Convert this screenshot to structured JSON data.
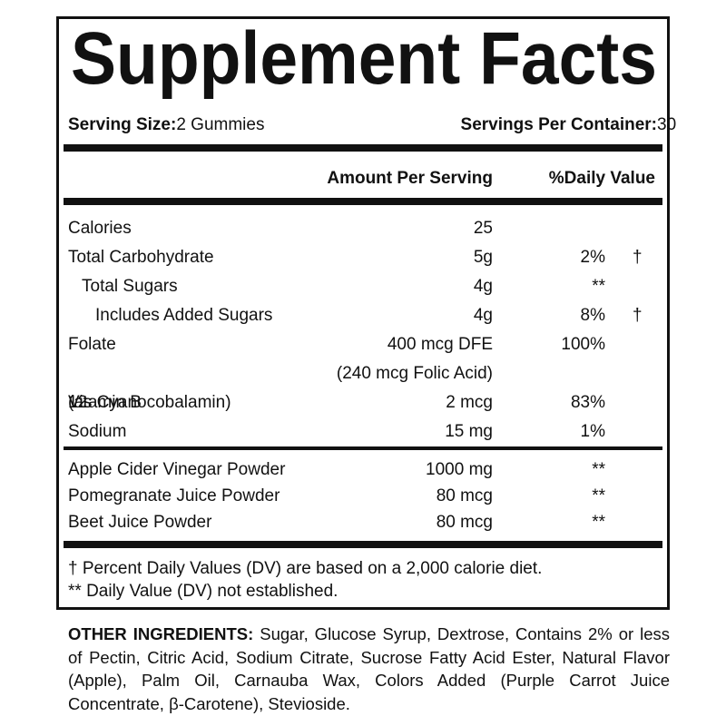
{
  "title": "Supplement Facts",
  "serving": {
    "size_label": "Serving Size:",
    "size": "2 Gummies",
    "per_container_label": "Servings Per Container:",
    "per_container": "30"
  },
  "header": {
    "amount": "Amount Per Serving",
    "daily_value": "%Daily Value"
  },
  "nutrients": [
    {
      "name": "Calories",
      "amount": "25"
    },
    {
      "name": "Total Carbohydrate",
      "amount": "5g",
      "dv": "2%",
      "mark": "†"
    },
    {
      "name": "Total Sugars",
      "amount": "4g",
      "dv": "**",
      "indent": 1
    },
    {
      "name": "Includes Added Sugars",
      "amount": "4g",
      "dv": "8%",
      "mark": "†",
      "indent": 2
    },
    {
      "name": "Folate",
      "amount": "400 mcg DFE",
      "dv": "100%",
      "note": "(240 mcg Folic Acid)"
    },
    {
      "name": "Vitamin B",
      "name_sub": "12",
      "name_suffix": " (as Cyanocobalamin)",
      "amount": "2 mcg",
      "dv": "83%"
    },
    {
      "name": "Sodium",
      "amount": "15 mg",
      "dv": "1%"
    }
  ],
  "other_nutrients": [
    {
      "name": "Apple Cider Vinegar Powder",
      "amount": "1000 mg",
      "dv": "**"
    },
    {
      "name": "Pomegranate Juice Powder",
      "amount": "80 mcg",
      "dv": "**"
    },
    {
      "name": "Beet Juice Powder",
      "amount": "80 mcg",
      "dv": "**"
    }
  ],
  "footnotes": [
    "† Percent Daily Values (DV) are based on a 2,000 calorie diet.",
    "** Daily Value (DV) not established."
  ],
  "other_ingredients": {
    "label": "OTHER INGREDIENTS:",
    "text": " Sugar, Glucose Syrup, Dextrose, Contains 2% or less of Pectin, Citric Acid, Sodium Citrate, Sucrose Fatty Acid Ester, Natural Flavor (Apple), Palm Oil, Carnauba Wax, Colors Added (Purple Carrot Juice Concentrate, β-Carotene), Stevioside."
  }
}
